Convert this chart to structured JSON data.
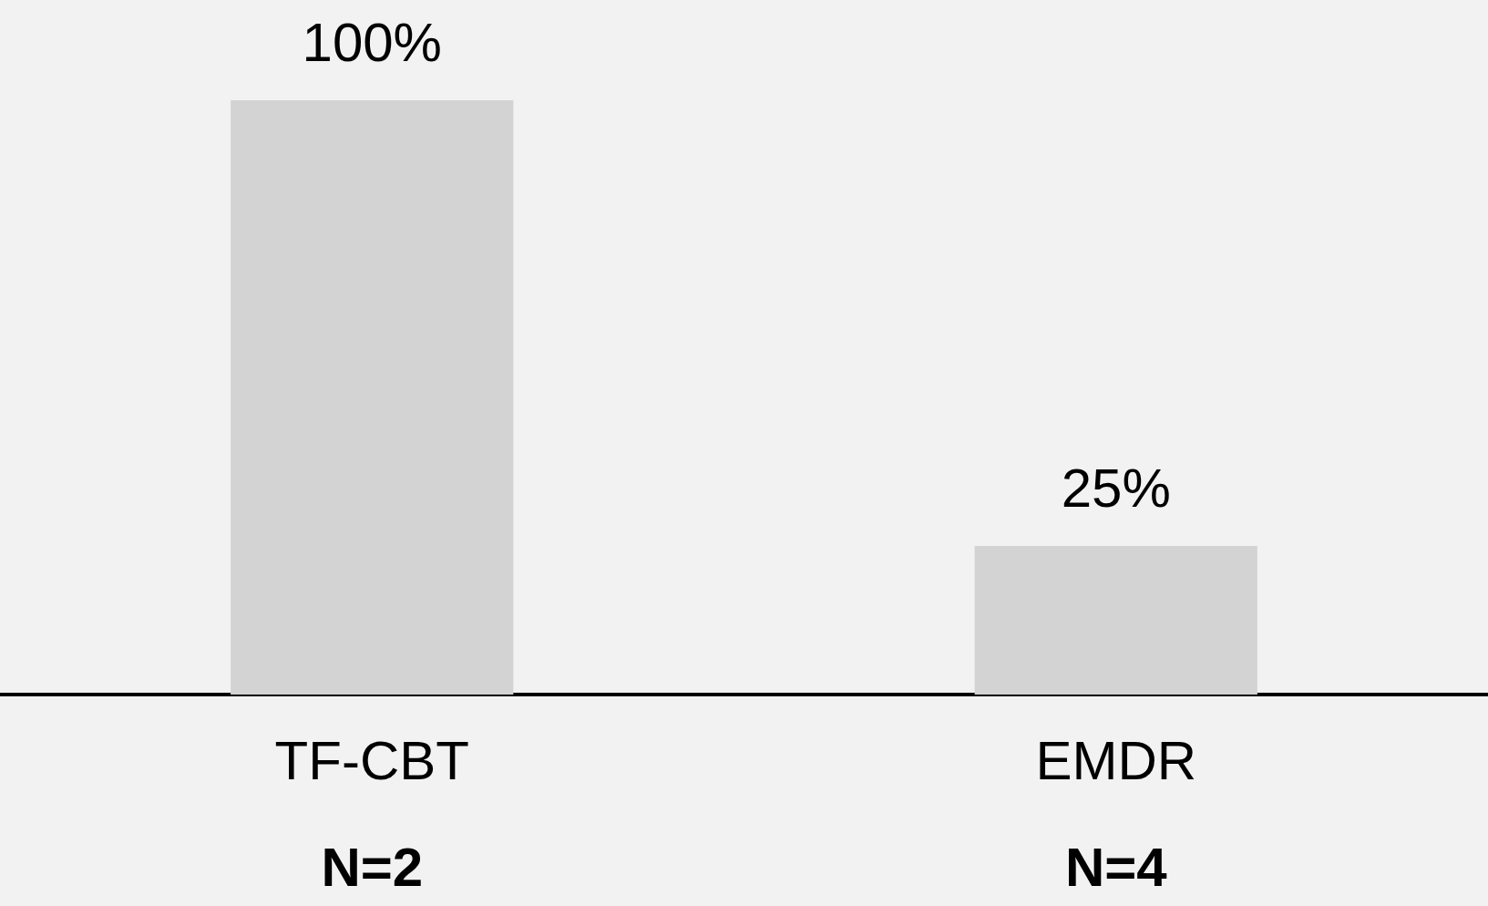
{
  "chart_data": {
    "type": "bar",
    "categories": [
      "TF-CBT",
      "EMDR"
    ],
    "values": [
      100,
      25
    ],
    "color": "#d3d3d3",
    "value_labels": [
      "100%",
      "25%"
    ],
    "annotations": [
      "N=2",
      "N=4"
    ],
    "grid": false,
    "legend": false
  }
}
